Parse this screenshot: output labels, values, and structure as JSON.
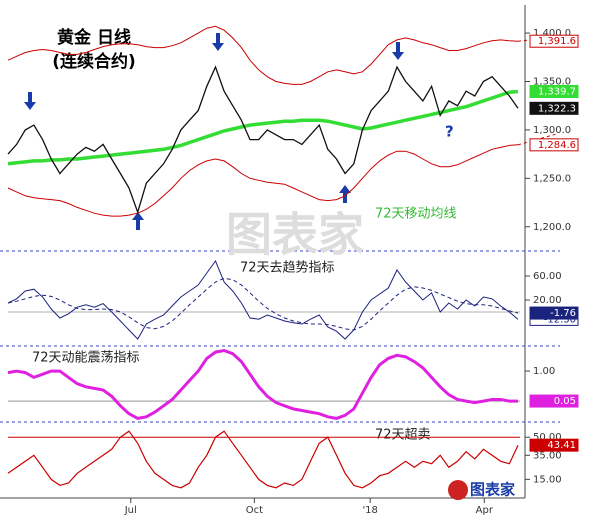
{
  "chart_data": [
    {
      "type": "line",
      "title": "黄金 日线",
      "subtitle": "(连续合约)",
      "annotation": "72天移动均线",
      "question": "?",
      "watermark": "图表家",
      "ylim": [
        1176,
        1429
      ],
      "yticks": [
        {
          "value": 1200,
          "label": "1,200.0"
        },
        {
          "value": 1250,
          "label": "1,250.0"
        },
        {
          "value": 1300,
          "label": "1,300.0"
        },
        {
          "value": 1350,
          "label": "1,350.0"
        },
        {
          "value": 1400,
          "label": "1,400.0"
        }
      ],
      "series": [
        {
          "color": "#cc0000",
          "width": 1,
          "end_label": "1,391.6",
          "label_style": "outlined",
          "extend": true,
          "values": [
            1372,
            1376,
            1380,
            1382,
            1383,
            1382,
            1380,
            1378,
            1378,
            1380,
            1383,
            1386,
            1388,
            1389,
            1389,
            1388,
            1386,
            1385,
            1385,
            1387,
            1390,
            1395,
            1400,
            1405,
            1407,
            1403,
            1395,
            1385,
            1372,
            1362,
            1355,
            1350,
            1348,
            1347,
            1347,
            1350,
            1355,
            1360,
            1362,
            1360,
            1358,
            1360,
            1368,
            1378,
            1388,
            1393,
            1395,
            1393,
            1390,
            1388,
            1385,
            1382,
            1382,
            1384,
            1387,
            1390,
            1392,
            1393,
            1392,
            1391.6
          ]
        },
        {
          "color": "#cc0000",
          "width": 1,
          "end_label": "1,284.6",
          "label_style": "outlined",
          "extend": true,
          "values": [
            1240,
            1236,
            1232,
            1230,
            1229,
            1228,
            1227,
            1224,
            1220,
            1217,
            1214,
            1212,
            1211,
            1211,
            1212,
            1214,
            1218,
            1224,
            1232,
            1240,
            1250,
            1258,
            1264,
            1268,
            1270,
            1268,
            1262,
            1255,
            1250,
            1248,
            1246,
            1245,
            1244,
            1240,
            1236,
            1232,
            1228,
            1227,
            1228,
            1232,
            1240,
            1250,
            1260,
            1268,
            1274,
            1278,
            1278,
            1275,
            1270,
            1265,
            1262,
            1262,
            1264,
            1268,
            1272,
            1276,
            1280,
            1282,
            1284,
            1284.6
          ]
        },
        {
          "color": "#33dd33",
          "width": 3.5,
          "end_label": "1,339.7",
          "label_style": "filled",
          "values": [
            1265,
            1266,
            1267,
            1268,
            1268,
            1269,
            1269,
            1270,
            1270,
            1271,
            1272,
            1273,
            1274,
            1275,
            1276,
            1277,
            1278,
            1279,
            1280,
            1282,
            1284,
            1287,
            1290,
            1293,
            1296,
            1299,
            1301,
            1303,
            1305,
            1306,
            1307,
            1308,
            1309,
            1309,
            1310,
            1310,
            1310,
            1309,
            1307,
            1305,
            1303,
            1301,
            1302,
            1304,
            1306,
            1308,
            1310,
            1312,
            1314,
            1316,
            1318,
            1320,
            1322,
            1324,
            1327,
            1330,
            1333,
            1336,
            1339,
            1339.7
          ]
        },
        {
          "color": "#111111",
          "width": 1.3,
          "end_label": "1,322.3",
          "label_style": "filled",
          "values": [
            1275,
            1285,
            1300,
            1305,
            1290,
            1270,
            1255,
            1265,
            1275,
            1282,
            1278,
            1285,
            1270,
            1255,
            1240,
            1215,
            1245,
            1255,
            1265,
            1280,
            1300,
            1310,
            1320,
            1345,
            1365,
            1340,
            1325,
            1310,
            1290,
            1290,
            1300,
            1295,
            1290,
            1290,
            1285,
            1295,
            1305,
            1280,
            1270,
            1255,
            1265,
            1300,
            1320,
            1330,
            1340,
            1365,
            1350,
            1340,
            1330,
            1345,
            1315,
            1330,
            1325,
            1340,
            1335,
            1350,
            1355,
            1345,
            1335,
            1322.3
          ]
        }
      ]
    },
    {
      "type": "line",
      "annotation": "72天去趋势指标",
      "ylim": [
        -55,
        100
      ],
      "yticks": [
        {
          "value": 20,
          "label": "20.00"
        },
        {
          "value": 60,
          "label": "60.00"
        }
      ],
      "series": [
        {
          "color": "#1a237e",
          "width": 1,
          "end_label": "-12.30",
          "label_style": "outlined",
          "values": [
            15,
            22,
            35,
            38,
            25,
            5,
            -10,
            -3,
            8,
            12,
            8,
            14,
            0,
            -15,
            -30,
            -45,
            -20,
            -12,
            -5,
            10,
            25,
            35,
            45,
            65,
            85,
            50,
            35,
            15,
            -10,
            -12,
            -5,
            -10,
            -15,
            -18,
            -20,
            -12,
            -5,
            -25,
            -32,
            -45,
            -30,
            0,
            20,
            30,
            40,
            70,
            50,
            35,
            20,
            32,
            0,
            15,
            5,
            20,
            10,
            25,
            22,
            10,
            0,
            -12.3
          ]
        },
        {
          "color": "#1a237e",
          "width": 1,
          "dash": true,
          "end_label": "-1.76",
          "label_style": "filled",
          "values": [
            15,
            18,
            22,
            26,
            28,
            26,
            20,
            12,
            6,
            4,
            4,
            5,
            4,
            0,
            -8,
            -18,
            -26,
            -28,
            -24,
            -15,
            -2,
            12,
            25,
            38,
            50,
            56,
            54,
            45,
            32,
            18,
            6,
            -3,
            -10,
            -15,
            -18,
            -20,
            -20,
            -21,
            -24,
            -28,
            -30,
            -24,
            -12,
            2,
            15,
            28,
            38,
            42,
            40,
            36,
            30,
            24,
            18,
            14,
            12,
            12,
            10,
            6,
            2,
            -1.76
          ]
        }
      ]
    },
    {
      "type": "line",
      "annotation": "72天动能震荡指标",
      "ylim": [
        -0.55,
        1.73
      ],
      "yticks": [
        {
          "value": 1,
          "label": "1.00"
        }
      ],
      "series": [
        {
          "color": "#e020e0",
          "width": 3,
          "end_label": "0.05",
          "label_style": "filled",
          "values": [
            0.95,
            1.0,
            0.95,
            0.8,
            0.9,
            1.0,
            1.0,
            0.8,
            0.6,
            0.5,
            0.45,
            0.4,
            0.2,
            -0.1,
            -0.35,
            -0.5,
            -0.45,
            -0.3,
            -0.1,
            0.1,
            0.4,
            0.7,
            1.0,
            1.4,
            1.6,
            1.65,
            1.55,
            1.3,
            0.9,
            0.5,
            0.2,
            0,
            -0.1,
            -0.2,
            -0.25,
            -0.3,
            -0.35,
            -0.45,
            -0.5,
            -0.4,
            -0.2,
            0.3,
            0.8,
            1.2,
            1.4,
            1.5,
            1.45,
            1.3,
            1.1,
            0.8,
            0.5,
            0.25,
            0.1,
            0.05,
            0.0,
            0.05,
            0.1,
            0.1,
            0.05,
            0.05
          ]
        }
      ]
    },
    {
      "type": "line",
      "annotation": "72天超卖",
      "logo": "图表家",
      "ylim": [
        2,
        61
      ],
      "yticks": [
        {
          "value": 15,
          "label": "15.00"
        },
        {
          "value": 35,
          "label": "35.00"
        },
        {
          "value": 50,
          "label": "50.00"
        }
      ],
      "xlim": [
        0,
        59
      ],
      "xticks": [
        {
          "value": 14.2,
          "label": "Jul"
        },
        {
          "value": 28.5,
          "label": "Oct"
        },
        {
          "value": 41.9,
          "label": "'18"
        },
        {
          "value": 55.1,
          "label": "Apr"
        }
      ],
      "series": [
        {
          "color": "#cc0000",
          "width": 1.2,
          "end_label": "43.41",
          "label_style": "filled",
          "values": [
            20,
            25,
            30,
            35,
            25,
            15,
            10,
            12,
            20,
            25,
            30,
            35,
            40,
            50,
            55,
            45,
            30,
            20,
            15,
            10,
            8,
            12,
            25,
            35,
            50,
            55,
            45,
            35,
            25,
            15,
            10,
            8,
            12,
            10,
            15,
            30,
            45,
            50,
            35,
            20,
            10,
            8,
            12,
            18,
            20,
            25,
            30,
            25,
            30,
            28,
            35,
            25,
            30,
            38,
            32,
            40,
            35,
            30,
            28,
            43.41
          ]
        }
      ]
    }
  ]
}
